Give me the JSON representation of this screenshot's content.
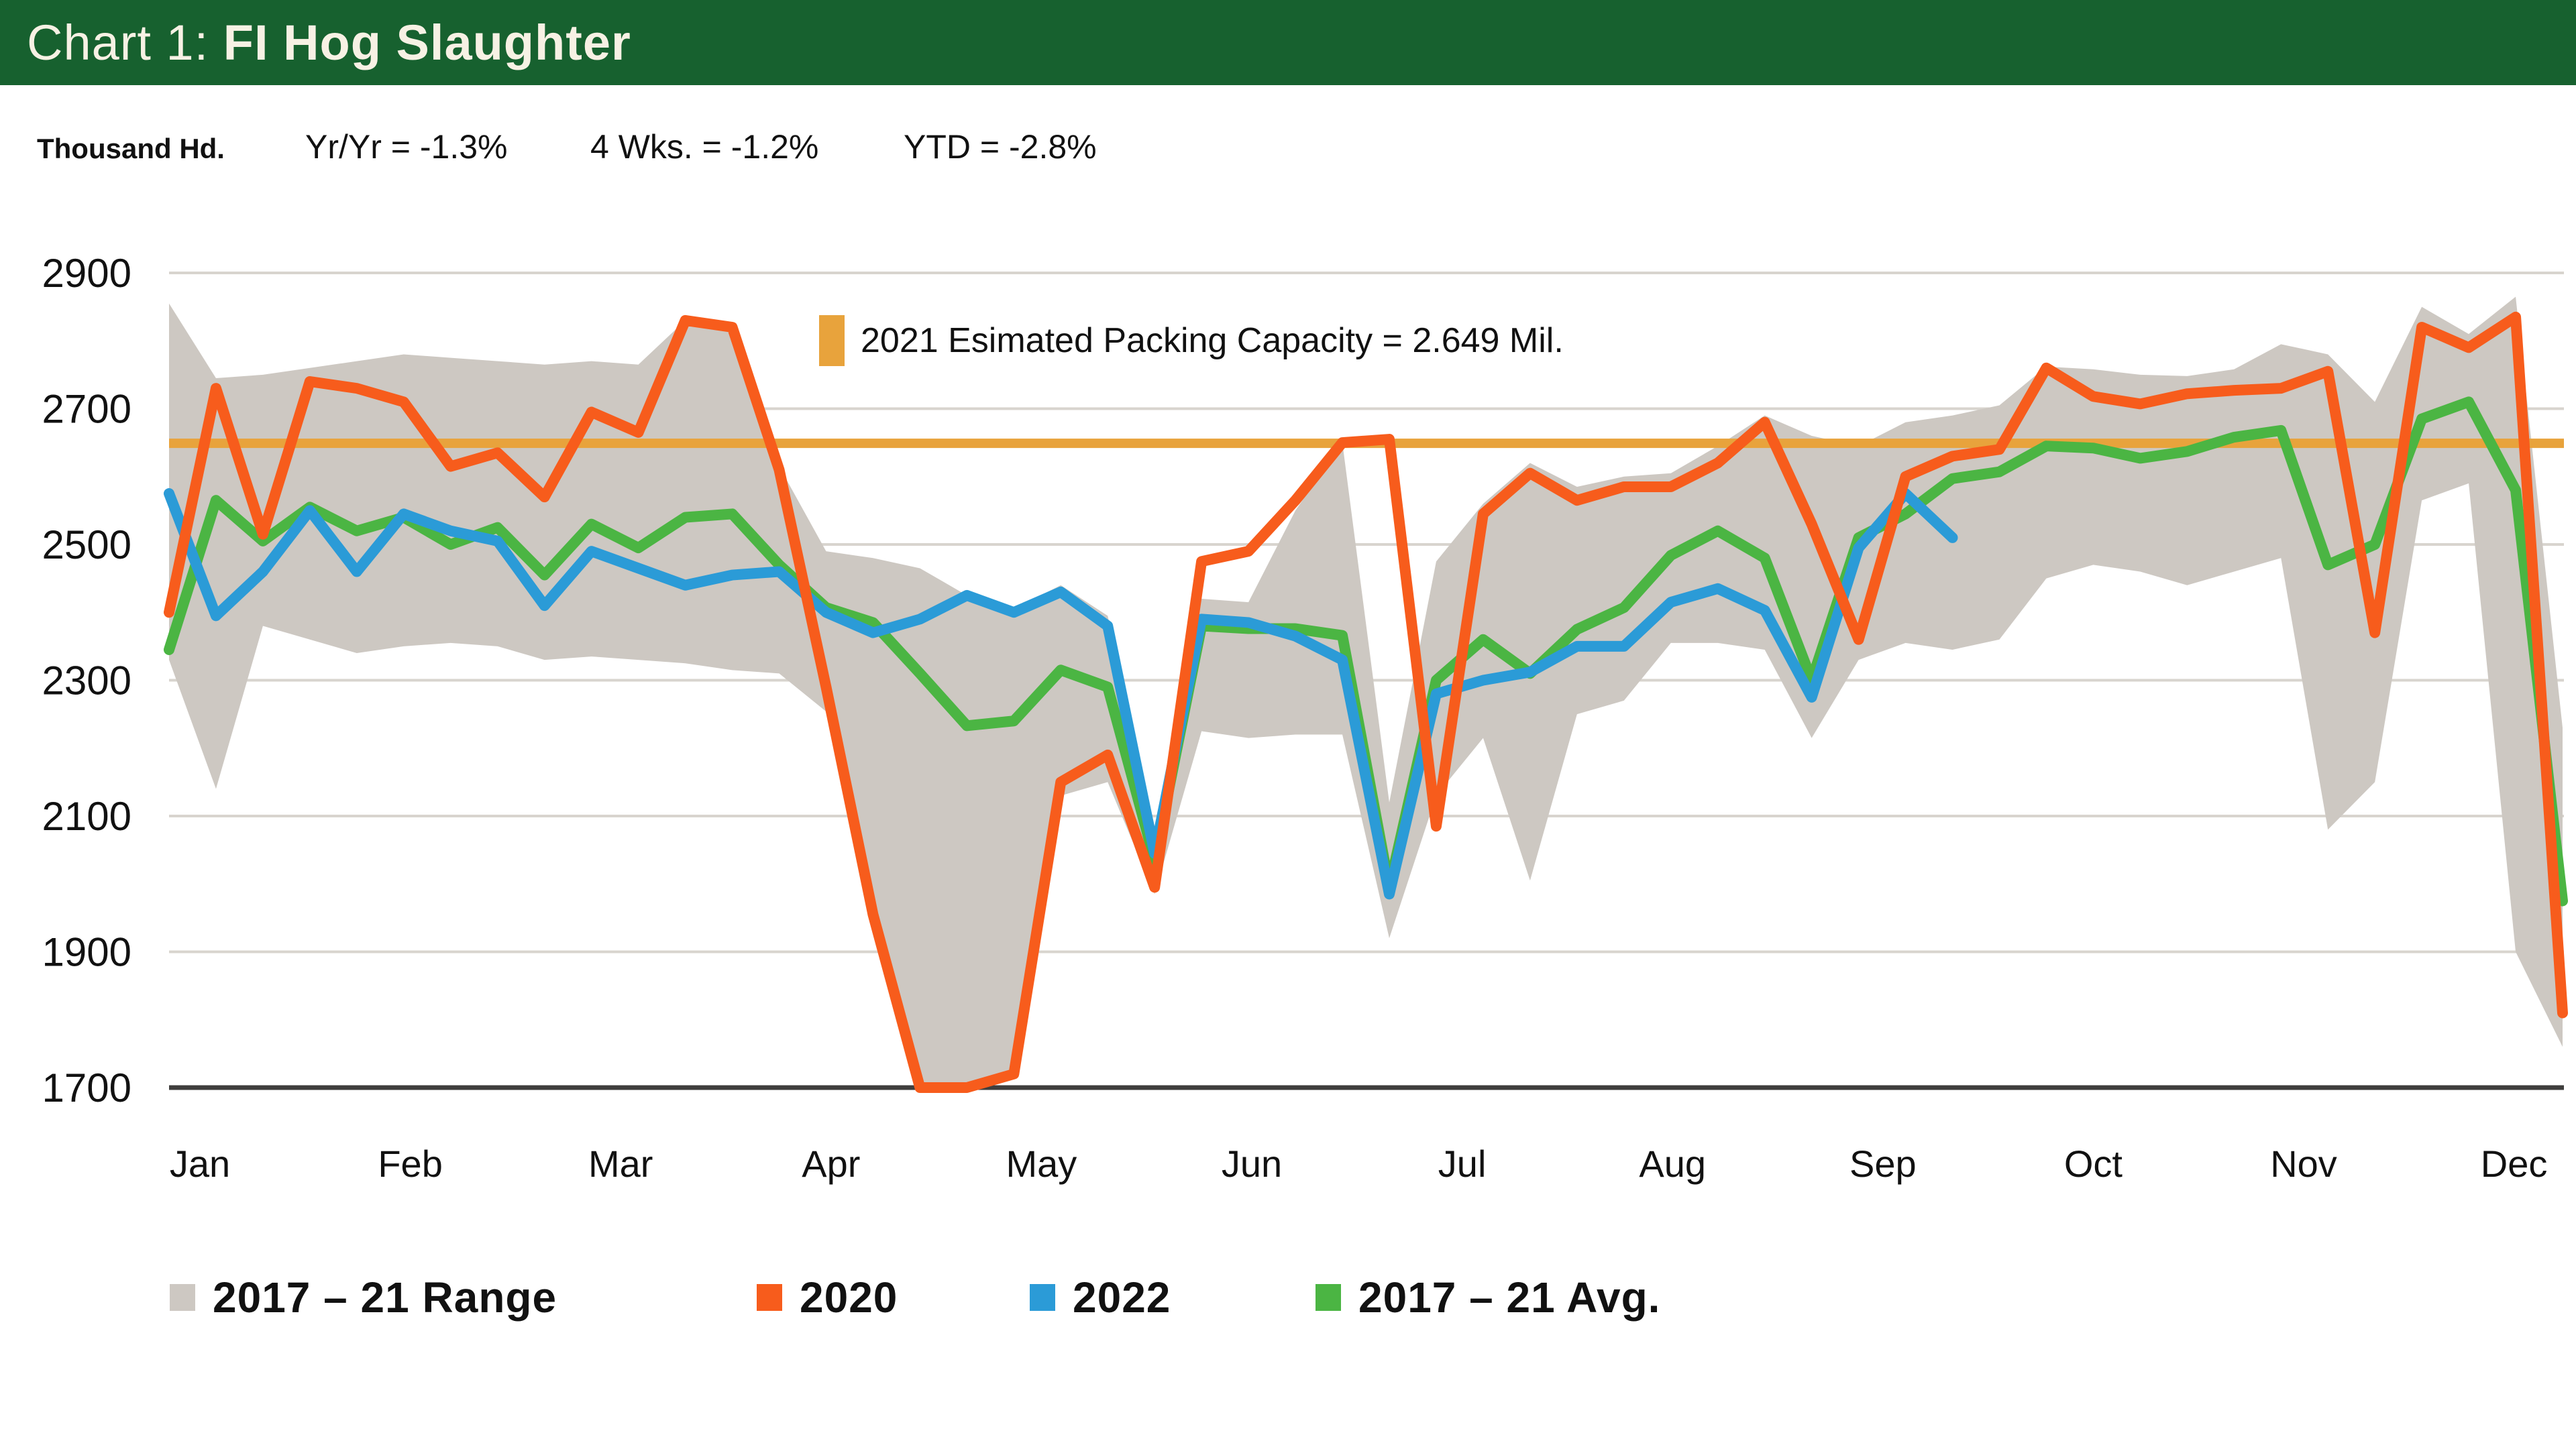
{
  "header": {
    "prefix": "Chart 1: ",
    "title": "FI Hog Slaughter",
    "bg_color": "#17612F",
    "text_color": "#F7F1E4"
  },
  "stats": {
    "unit_label": "Thousand Hd.",
    "yr_yr": "Yr/Yr = -1.3%",
    "four_wks": "4 Wks. = -1.2%",
    "ytd": "YTD = -2.8%"
  },
  "annotation": {
    "label": "2021 Esimated Packing Capacity = 2.649 Mil.",
    "swatch_color": "#E8A33C"
  },
  "legend": {
    "items": [
      {
        "label": "2017 – 21 Range",
        "color": "#CDC8C2"
      },
      {
        "label": "2020",
        "color": "#F75C1C"
      },
      {
        "label": "2022",
        "color": "#2B9BD7"
      },
      {
        "label": "2017 – 21 Avg.",
        "color": "#4BB543"
      }
    ]
  },
  "chart_data": {
    "type": "line",
    "title": "FI Hog Slaughter",
    "ylabel": "Thousand Hd.",
    "ylim": [
      1700,
      2900
    ],
    "yticks": [
      2900,
      2700,
      2500,
      2300,
      2100,
      1900,
      1700
    ],
    "grid": "horizontal",
    "legend_position": "bottom",
    "x_unit": "week",
    "weeks": 52,
    "month_labels": [
      "Jan",
      "Feb",
      "Mar",
      "Apr",
      "May",
      "Jun",
      "Jul",
      "Aug",
      "Sep",
      "Oct",
      "Nov",
      "Dec"
    ],
    "reference_line": {
      "label": "2021 Esimated Packing Capacity",
      "value": 2649,
      "color": "#E8A33C"
    },
    "series": [
      {
        "name": "2017 – 21 Range",
        "type": "band",
        "color": "#CDC8C2",
        "upper": [
          2855,
          2745,
          2750,
          2760,
          2770,
          2780,
          2775,
          2770,
          2765,
          2770,
          2765,
          2830,
          2820,
          2615,
          2490,
          2480,
          2465,
          2425,
          2405,
          2440,
          2395,
          2085,
          2420,
          2415,
          2550,
          2650,
          2120,
          2475,
          2560,
          2620,
          2585,
          2600,
          2605,
          2645,
          2690,
          2660,
          2645,
          2680,
          2690,
          2705,
          2762,
          2758,
          2750,
          2748,
          2758,
          2795,
          2780,
          2710,
          2850,
          2810,
          2865,
          2230
        ],
        "lower": [
          2330,
          2140,
          2380,
          2360,
          2340,
          2350,
          2355,
          2350,
          2330,
          2335,
          2330,
          2325,
          2315,
          2310,
          2254,
          1955,
          1700,
          1700,
          1720,
          2130,
          2150,
          1985,
          2225,
          2215,
          2220,
          2220,
          1920,
          2130,
          2215,
          2005,
          2250,
          2270,
          2355,
          2355,
          2345,
          2215,
          2330,
          2355,
          2345,
          2360,
          2450,
          2470,
          2460,
          2440,
          2460,
          2480,
          2080,
          2150,
          2565,
          2590,
          1900,
          1760
        ]
      },
      {
        "name": "2020",
        "type": "line",
        "color": "#F75C1C",
        "values": [
          2400,
          2730,
          2515,
          2740,
          2730,
          2710,
          2615,
          2635,
          2570,
          2695,
          2665,
          2830,
          2820,
          2610,
          2290,
          1955,
          1700,
          1700,
          1720,
          2150,
          2190,
          1995,
          2475,
          2490,
          2565,
          2650,
          2655,
          2085,
          2545,
          2605,
          2565,
          2585,
          2585,
          2620,
          2680,
          2530,
          2360,
          2600,
          2630,
          2640,
          2760,
          2718,
          2707,
          2722,
          2727,
          2730,
          2755,
          2370,
          2820,
          2790,
          2835,
          1810
        ]
      },
      {
        "name": "2022",
        "type": "line",
        "color": "#2B9BD7",
        "values": [
          2575,
          2395,
          2460,
          2550,
          2460,
          2545,
          2520,
          2505,
          2410,
          2490,
          2465,
          2440,
          2455,
          2460,
          2400,
          2370,
          2390,
          2425,
          2400,
          2430,
          2380,
          2045,
          2390,
          2385,
          2365,
          2330,
          1985,
          2280,
          2300,
          2312,
          2350,
          2350,
          2415,
          2435,
          2403,
          2275,
          2495,
          2575,
          2510
        ]
      },
      {
        "name": "2017 – 21 Avg.",
        "type": "line",
        "color": "#4BB543",
        "values": [
          2345,
          2565,
          2505,
          2555,
          2520,
          2540,
          2500,
          2525,
          2455,
          2530,
          2495,
          2540,
          2545,
          2470,
          2407,
          2385,
          2310,
          2233,
          2240,
          2315,
          2290,
          2035,
          2380,
          2376,
          2376,
          2366,
          1995,
          2300,
          2360,
          2310,
          2375,
          2407,
          2484,
          2520,
          2480,
          2300,
          2510,
          2545,
          2597,
          2607,
          2645,
          2642,
          2627,
          2637,
          2658,
          2668,
          2470,
          2500,
          2685,
          2710,
          2580,
          1975
        ]
      }
    ]
  },
  "style": {
    "gridline_color": "#D8D4CE",
    "axis_color": "#3F3E3D"
  }
}
